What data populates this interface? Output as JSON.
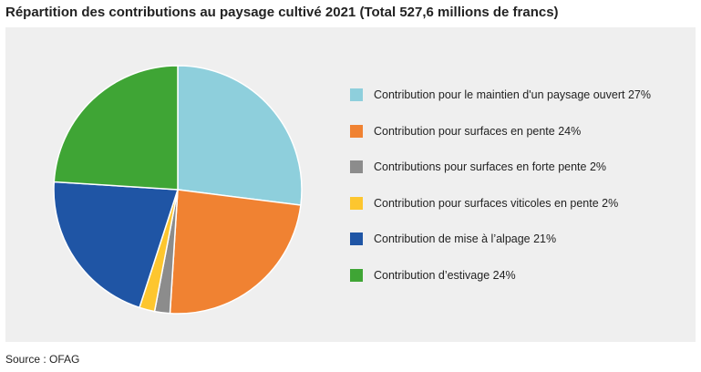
{
  "chart_data": {
    "type": "pie",
    "title": "Répartition des contributions au paysage cultivé 2021 (Total 527,6 millions de francs)",
    "slices": [
      {
        "label": "Contribution pour le maintien d'un paysage ouvert 27%",
        "value": 27,
        "color": "#8ecfdc"
      },
      {
        "label": "Contribution pour surfaces en pente 24%",
        "value": 24,
        "color": "#f08232"
      },
      {
        "label": "Contributions pour surfaces en forte pente 2%",
        "value": 2,
        "color": "#8c8c8c"
      },
      {
        "label": "Contribution pour surfaces viticoles en pente 2%",
        "value": 2,
        "color": "#fdc62f"
      },
      {
        "label": "Contribution de mise à l’alpage 21%",
        "value": 21,
        "color": "#1f55a5"
      },
      {
        "label": "Contribution d’estivage 24%",
        "value": 24,
        "color": "#3fa535"
      }
    ],
    "legend_position": "right",
    "source": "Source : OFAG"
  }
}
